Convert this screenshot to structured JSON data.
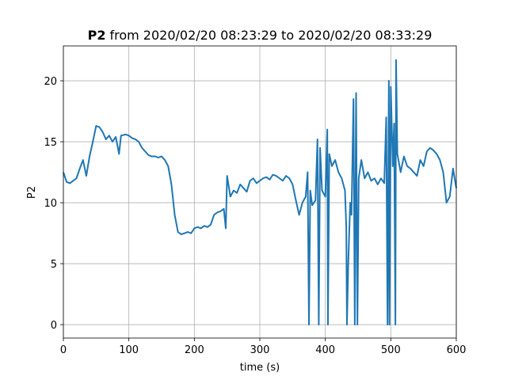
{
  "chart_data": {
    "type": "line",
    "title_parts": [
      "P2",
      "from 2020/02/20 08:23:29 to 2020/02/20 08:33:29"
    ],
    "xlabel": "time (s)",
    "ylabel": "P2",
    "color": "#1f77b4",
    "grid": true,
    "xlim": [
      0,
      600
    ],
    "ylim": [
      -1.1,
      22.86
    ],
    "xticks": [
      0,
      100,
      200,
      300,
      400,
      500,
      600
    ],
    "yticks": [
      0,
      5,
      10,
      15,
      20
    ],
    "x": [
      0,
      5,
      10,
      15,
      20,
      25,
      30,
      35,
      40,
      45,
      50,
      55,
      60,
      65,
      70,
      75,
      80,
      85,
      88,
      95,
      100,
      105,
      110,
      115,
      120,
      125,
      130,
      135,
      140,
      145,
      150,
      155,
      160,
      165,
      170,
      175,
      180,
      185,
      190,
      195,
      200,
      205,
      210,
      215,
      220,
      225,
      230,
      235,
      240,
      245,
      248,
      250,
      255,
      260,
      265,
      270,
      275,
      280,
      285,
      290,
      295,
      300,
      305,
      310,
      315,
      320,
      325,
      330,
      335,
      340,
      345,
      350,
      355,
      360,
      365,
      370,
      373,
      375,
      377,
      380,
      385,
      388,
      390,
      392,
      395,
      400,
      403,
      404,
      406,
      410,
      415,
      420,
      425,
      430,
      432,
      433,
      435,
      438,
      440,
      443,
      445,
      447,
      449,
      451,
      455,
      460,
      465,
      470,
      475,
      480,
      485,
      490,
      493,
      495,
      497,
      498,
      500,
      503,
      505,
      507,
      508,
      510,
      515,
      520,
      525,
      530,
      535,
      540,
      545,
      550,
      555,
      560,
      565,
      570,
      575,
      580,
      585,
      590,
      595,
      600
    ],
    "values": [
      12.5,
      11.7,
      11.6,
      11.8,
      12.0,
      12.8,
      13.5,
      12.2,
      13.8,
      15.0,
      16.3,
      16.2,
      15.8,
      15.2,
      15.5,
      15.0,
      15.4,
      14.0,
      15.5,
      15.6,
      15.5,
      15.3,
      15.2,
      15.0,
      14.5,
      14.2,
      13.9,
      13.8,
      13.8,
      13.7,
      13.8,
      13.5,
      13.0,
      11.5,
      9.0,
      7.6,
      7.4,
      7.5,
      7.6,
      7.5,
      7.9,
      8.0,
      7.9,
      8.1,
      8.0,
      8.2,
      9.0,
      9.2,
      9.3,
      9.5,
      7.9,
      12.2,
      10.5,
      11.0,
      10.8,
      11.5,
      11.2,
      10.9,
      11.8,
      12.0,
      11.6,
      11.8,
      12.0,
      12.1,
      11.9,
      12.3,
      12.2,
      12.0,
      11.8,
      12.2,
      12.0,
      11.5,
      10.2,
      9.0,
      10.0,
      10.5,
      12.5,
      0,
      11.0,
      9.8,
      10.2,
      15.2,
      0,
      14.5,
      11.0,
      10.5,
      16.0,
      0,
      14.0,
      13.0,
      13.5,
      12.5,
      12.0,
      11.0,
      8.0,
      0,
      5.0,
      10.0,
      9.0,
      18.5,
      0,
      19.0,
      0,
      12.0,
      13.5,
      12.0,
      12.5,
      11.8,
      12.0,
      11.5,
      12.0,
      11.6,
      17.0,
      0,
      20.0,
      0,
      19.5,
      13.0,
      16.5,
      0,
      21.7,
      14.0,
      12.5,
      13.8,
      13.0,
      12.8,
      12.5,
      12.2,
      13.5,
      13.0,
      14.2,
      14.5,
      14.3,
      14.0,
      13.5,
      12.5,
      10.0,
      10.5,
      12.8,
      11.2
    ]
  }
}
